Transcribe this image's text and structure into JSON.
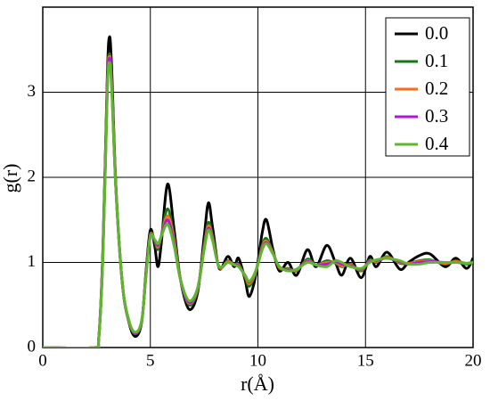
{
  "chart_data": {
    "type": "line",
    "x_label": "r(Å)",
    "y_label": "g(r)",
    "x": [
      0,
      2.4,
      2.6,
      2.8,
      3.0,
      3.1,
      3.2,
      3.4,
      3.7,
      4.0,
      4.3,
      4.6,
      4.8,
      5.0,
      5.2,
      5.35,
      5.5,
      5.8,
      6.1,
      6.4,
      6.8,
      7.2,
      7.5,
      7.7,
      7.9,
      8.2,
      8.6,
      8.9,
      9.1,
      9.4,
      9.6,
      9.9,
      10.2,
      10.4,
      10.7,
      11.0,
      11.4,
      11.8,
      12.3,
      12.7,
      13.2,
      13.6,
      13.9,
      14.3,
      14.8,
      15.2,
      15.5,
      16.0,
      16.6,
      17.0,
      17.5,
      18.0,
      18.7,
      19.2,
      19.7,
      20
    ],
    "series": [
      {
        "name": "0.0",
        "color": "#000000",
        "values": [
          0,
          0,
          0.1,
          1.2,
          3.2,
          3.65,
          3.3,
          1.9,
          0.75,
          0.3,
          0.13,
          0.3,
          0.9,
          1.38,
          1.2,
          0.95,
          1.2,
          1.92,
          1.4,
          0.8,
          0.45,
          0.65,
          1.3,
          1.7,
          1.4,
          0.93,
          1.07,
          0.95,
          1.05,
          0.8,
          0.6,
          0.85,
          1.35,
          1.5,
          1.15,
          0.9,
          1.0,
          0.85,
          1.15,
          0.95,
          1.2,
          1.0,
          0.85,
          1.05,
          0.82,
          1.07,
          0.95,
          1.12,
          0.92,
          1.0,
          1.08,
          1.1,
          0.95,
          1.05,
          0.93,
          1.05
        ]
      },
      {
        "name": "0.1",
        "color": "#137a13",
        "values": [
          0,
          0,
          0.1,
          1.15,
          3.1,
          3.45,
          3.15,
          1.87,
          0.75,
          0.31,
          0.16,
          0.31,
          0.87,
          1.33,
          1.25,
          1.15,
          1.3,
          1.63,
          1.3,
          0.8,
          0.5,
          0.68,
          1.2,
          1.47,
          1.3,
          0.94,
          1.02,
          0.97,
          0.98,
          0.83,
          0.72,
          0.88,
          1.2,
          1.28,
          1.12,
          0.93,
          0.93,
          0.9,
          1.04,
          0.97,
          1.02,
          0.99,
          0.95,
          0.98,
          0.9,
          1.03,
          1.0,
          1.07,
          0.99,
          0.99,
          1.02,
          1.03,
          0.98,
          1.02,
          0.98,
          1.01
        ]
      },
      {
        "name": "0.2",
        "color": "#ff6a1a",
        "values": [
          0,
          0,
          0.1,
          1.13,
          3.07,
          3.42,
          3.12,
          1.86,
          0.75,
          0.31,
          0.17,
          0.31,
          0.86,
          1.32,
          1.26,
          1.18,
          1.3,
          1.55,
          1.27,
          0.8,
          0.52,
          0.69,
          1.18,
          1.43,
          1.28,
          0.94,
          1.01,
          0.97,
          0.97,
          0.84,
          0.75,
          0.89,
          1.18,
          1.25,
          1.11,
          0.94,
          0.92,
          0.91,
          1.02,
          0.97,
          1.0,
          1.0,
          0.96,
          0.97,
          0.91,
          1.02,
          1.01,
          1.06,
          1.0,
          0.99,
          1.01,
          1.02,
          0.99,
          1.01,
          0.99,
          1.0
        ]
      },
      {
        "name": "0.3",
        "color": "#b012e8",
        "values": [
          0,
          0,
          0.1,
          1.12,
          3.04,
          3.4,
          3.1,
          1.85,
          0.75,
          0.32,
          0.17,
          0.32,
          0.85,
          1.31,
          1.26,
          1.2,
          1.3,
          1.5,
          1.23,
          0.8,
          0.53,
          0.7,
          1.16,
          1.4,
          1.26,
          0.95,
          1.0,
          0.97,
          0.96,
          0.85,
          0.77,
          0.9,
          1.16,
          1.23,
          1.1,
          0.95,
          0.91,
          0.92,
          1.01,
          0.97,
          0.98,
          1.01,
          0.98,
          0.96,
          0.92,
          1.01,
          1.02,
          1.05,
          1.01,
          0.98,
          1.0,
          1.01,
          1.0,
          1.0,
          0.99,
          1.0
        ]
      },
      {
        "name": "0.4",
        "color": "#5cb82a",
        "values": [
          0,
          0,
          0.1,
          1.1,
          3.0,
          3.35,
          3.05,
          1.85,
          0.75,
          0.32,
          0.18,
          0.32,
          0.85,
          1.3,
          1.27,
          1.22,
          1.3,
          1.45,
          1.2,
          0.8,
          0.55,
          0.7,
          1.15,
          1.38,
          1.25,
          0.95,
          1.0,
          0.97,
          0.95,
          0.85,
          0.78,
          0.9,
          1.15,
          1.22,
          1.1,
          0.95,
          0.9,
          0.92,
          1.0,
          0.97,
          0.95,
          1.02,
          1.0,
          0.95,
          0.93,
          1.0,
          1.03,
          1.05,
          1.02,
          0.98,
          0.98,
          1.0,
          1.0,
          1.0,
          0.99,
          1.0
        ]
      }
    ],
    "xlim": [
      0,
      20
    ],
    "ylim": [
      0,
      4
    ],
    "xticks": [
      0,
      5,
      10,
      15,
      20
    ],
    "yticks": [
      0,
      1,
      2,
      3
    ],
    "grid": true,
    "legend": "upper right"
  }
}
